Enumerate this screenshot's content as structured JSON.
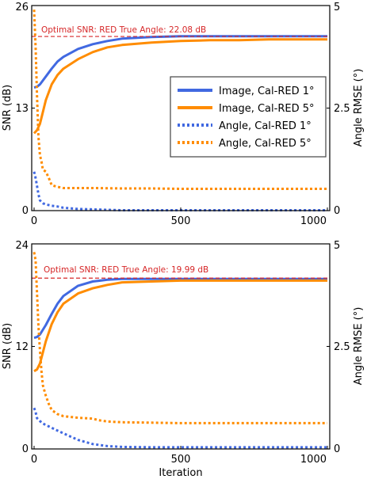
{
  "colors": {
    "blue": "#4169E1",
    "orange": "#FF8C00",
    "ref_line": "#D62728",
    "axis": "#000000",
    "legend_border": "#444444"
  },
  "legend": {
    "placement": "center-right",
    "entries": [
      {
        "label": "Image, Cal-RED 1°",
        "color": "#4169E1",
        "style": "solid"
      },
      {
        "label": "Image, Cal-RED 5°",
        "color": "#FF8C00",
        "style": "solid"
      },
      {
        "label": "Angle, Cal-RED 1°",
        "color": "#4169E1",
        "style": "dotted"
      },
      {
        "label": "Angle, Cal-RED 5°",
        "color": "#FF8C00",
        "style": "dotted"
      }
    ]
  },
  "chart_data": [
    {
      "type": "line",
      "annotation": "Optimal SNR: RED True Angle: 22.08 dB",
      "reference_y": 22.08,
      "xlabel": "",
      "ylabel": "SNR (dB)",
      "y2label": "Angle RMSE (°)",
      "xlim": [
        0,
        1000
      ],
      "ylim": [
        0,
        26
      ],
      "y2lim": [
        0,
        5
      ],
      "xticks": [
        "0",
        "500",
        "1000"
      ],
      "yticks": [
        "0",
        "13",
        "26"
      ],
      "y2ticks": [
        "0",
        "2.5",
        "5"
      ],
      "grid": false,
      "series": [
        {
          "axis": "left",
          "style": "solid",
          "color": "#4169E1",
          "x": [
            0,
            10,
            20,
            40,
            60,
            80,
            100,
            150,
            200,
            250,
            300,
            400,
            500,
            600,
            700,
            800,
            900,
            1000
          ],
          "y": [
            15.6,
            15.7,
            16.0,
            17.0,
            18.0,
            18.9,
            19.5,
            20.5,
            21.1,
            21.5,
            21.8,
            22.0,
            22.1,
            22.1,
            22.1,
            22.1,
            22.1,
            22.1
          ]
        },
        {
          "axis": "left",
          "style": "solid",
          "color": "#FF8C00",
          "x": [
            0,
            10,
            20,
            30,
            40,
            60,
            80,
            100,
            150,
            200,
            250,
            300,
            400,
            500,
            600,
            700,
            800,
            900,
            1000
          ],
          "y": [
            9.8,
            10.2,
            11.0,
            12.5,
            14.0,
            16.0,
            17.2,
            18.0,
            19.2,
            20.1,
            20.7,
            21.0,
            21.3,
            21.5,
            21.6,
            21.6,
            21.7,
            21.7,
            21.7
          ]
        },
        {
          "axis": "right",
          "style": "dotted",
          "color": "#4169E1",
          "x": [
            0,
            5,
            10,
            15,
            20,
            30,
            40,
            60,
            80,
            100,
            150,
            200,
            250,
            300,
            400,
            500,
            600,
            700,
            800,
            900,
            1000
          ],
          "y": [
            0.95,
            0.8,
            0.6,
            0.4,
            0.25,
            0.18,
            0.15,
            0.12,
            0.1,
            0.07,
            0.04,
            0.03,
            0.02,
            0.01,
            0.01,
            0.01,
            0.01,
            0.01,
            0.01,
            0.01,
            0.01
          ]
        },
        {
          "axis": "right",
          "style": "dotted",
          "color": "#FF8C00",
          "x": [
            0,
            5,
            10,
            15,
            20,
            25,
            30,
            40,
            50,
            60,
            80,
            100,
            150,
            200,
            300,
            400,
            500,
            600,
            700,
            800,
            900,
            1000
          ],
          "y": [
            4.9,
            4.0,
            2.8,
            1.8,
            1.35,
            1.2,
            1.0,
            0.95,
            0.8,
            0.62,
            0.58,
            0.55,
            0.55,
            0.55,
            0.54,
            0.54,
            0.53,
            0.53,
            0.53,
            0.53,
            0.53,
            0.53
          ]
        }
      ]
    },
    {
      "type": "line",
      "annotation": "Optimal SNR: RED True Angle: 19.99 dB",
      "reference_y": 19.99,
      "xlabel": "Iteration",
      "ylabel": "SNR (dB)",
      "y2label": "Angle RMSE (°)",
      "xlim": [
        0,
        1000
      ],
      "ylim": [
        0,
        24
      ],
      "y2lim": [
        0,
        5
      ],
      "xticks": [
        "0",
        "500",
        "1000"
      ],
      "yticks": [
        "0",
        "12",
        "24"
      ],
      "y2ticks": [
        "0",
        "2.5",
        "5"
      ],
      "grid": false,
      "series": [
        {
          "axis": "left",
          "style": "solid",
          "color": "#4169E1",
          "x": [
            0,
            10,
            20,
            40,
            60,
            80,
            100,
            150,
            200,
            250,
            300,
            400,
            500,
            600,
            700,
            800,
            900,
            1000
          ],
          "y": [
            13.0,
            13.1,
            13.4,
            14.5,
            15.8,
            17.0,
            17.9,
            19.1,
            19.6,
            19.8,
            19.9,
            19.9,
            19.9,
            19.9,
            19.9,
            19.9,
            19.9,
            19.9
          ]
        },
        {
          "axis": "left",
          "style": "solid",
          "color": "#FF8C00",
          "x": [
            0,
            10,
            20,
            30,
            40,
            60,
            80,
            100,
            150,
            200,
            250,
            300,
            400,
            500,
            600,
            700,
            800,
            900,
            1000
          ],
          "y": [
            9.1,
            9.3,
            10.0,
            11.3,
            12.6,
            14.6,
            16.0,
            17.0,
            18.2,
            18.8,
            19.2,
            19.5,
            19.6,
            19.7,
            19.7,
            19.7,
            19.7,
            19.7,
            19.7
          ]
        },
        {
          "axis": "right",
          "style": "dotted",
          "color": "#4169E1",
          "x": [
            0,
            5,
            10,
            20,
            30,
            50,
            70,
            100,
            150,
            200,
            250,
            300,
            400,
            500,
            600,
            700,
            800,
            900,
            1000
          ],
          "y": [
            1.0,
            0.9,
            0.75,
            0.68,
            0.62,
            0.55,
            0.48,
            0.38,
            0.22,
            0.12,
            0.07,
            0.05,
            0.04,
            0.04,
            0.04,
            0.04,
            0.04,
            0.04,
            0.04
          ]
        },
        {
          "axis": "right",
          "style": "dotted",
          "color": "#FF8C00",
          "x": [
            0,
            5,
            10,
            15,
            20,
            25,
            30,
            40,
            50,
            60,
            80,
            100,
            150,
            200,
            220,
            250,
            300,
            400,
            500,
            600,
            700,
            800,
            900,
            1000
          ],
          "y": [
            4.8,
            4.6,
            3.8,
            3.0,
            2.4,
            1.9,
            1.55,
            1.3,
            1.1,
            0.95,
            0.85,
            0.8,
            0.76,
            0.74,
            0.7,
            0.67,
            0.65,
            0.64,
            0.63,
            0.63,
            0.63,
            0.63,
            0.63,
            0.63
          ]
        }
      ]
    }
  ]
}
